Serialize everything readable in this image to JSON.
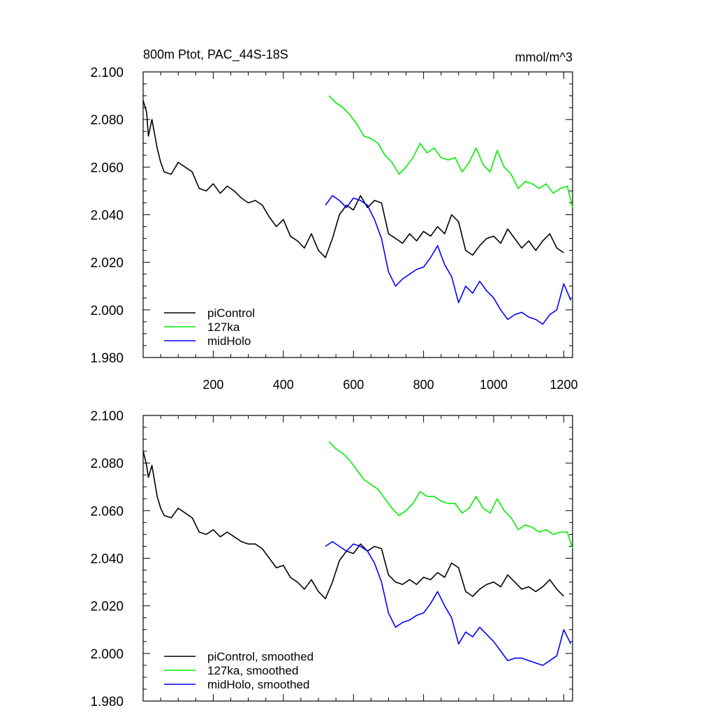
{
  "figure": {
    "title_left": "800m Ptot, PAC_44S-18S",
    "title_right": "mmol/m^3"
  },
  "chart_data": [
    {
      "type": "line",
      "title": "800m Ptot, PAC_44S-18S",
      "units": "mmol/m^3",
      "xlim": [
        0,
        1225
      ],
      "ylim": [
        1.98,
        2.1
      ],
      "xticks": [
        200,
        400,
        600,
        800,
        1000,
        1200
      ],
      "xtick_labels": [
        "200",
        "400",
        "600",
        "800",
        "1000",
        "1200"
      ],
      "yticks": [
        1.98,
        2.0,
        2.02,
        2.04,
        2.06,
        2.08,
        2.1
      ],
      "ytick_labels": [
        "1.980",
        "2.000",
        "2.020",
        "2.040",
        "2.060",
        "2.080",
        "2.100"
      ],
      "grid": false,
      "legend_position": "bottom-left",
      "series": [
        {
          "name": "piControl",
          "color": "#000000",
          "x": [
            0,
            10,
            15,
            25,
            40,
            50,
            60,
            80,
            100,
            120,
            140,
            160,
            180,
            200,
            220,
            240,
            260,
            280,
            300,
            320,
            340,
            360,
            380,
            400,
            420,
            440,
            460,
            480,
            500,
            520,
            540,
            560,
            580,
            600,
            620,
            640,
            660,
            680,
            700,
            720,
            740,
            760,
            780,
            800,
            820,
            840,
            860,
            880,
            900,
            920,
            940,
            960,
            980,
            1000,
            1020,
            1040,
            1060,
            1080,
            1100,
            1120,
            1140,
            1160,
            1180,
            1200
          ],
          "y": [
            2.088,
            2.083,
            2.073,
            2.08,
            2.068,
            2.062,
            2.058,
            2.057,
            2.062,
            2.06,
            2.058,
            2.051,
            2.05,
            2.053,
            2.049,
            2.052,
            2.05,
            2.047,
            2.045,
            2.046,
            2.044,
            2.039,
            2.035,
            2.038,
            2.031,
            2.029,
            2.026,
            2.032,
            2.025,
            2.022,
            2.03,
            2.04,
            2.044,
            2.042,
            2.048,
            2.043,
            2.046,
            2.045,
            2.032,
            2.03,
            2.028,
            2.032,
            2.029,
            2.033,
            2.031,
            2.035,
            2.032,
            2.04,
            2.037,
            2.025,
            2.023,
            2.027,
            2.03,
            2.031,
            2.028,
            2.034,
            2.03,
            2.026,
            2.029,
            2.025,
            2.029,
            2.032,
            2.026,
            2.024
          ]
        },
        {
          "name": "127ka",
          "color": "#00ee00",
          "x": [
            530,
            550,
            570,
            590,
            610,
            630,
            650,
            670,
            690,
            710,
            730,
            750,
            770,
            790,
            810,
            830,
            850,
            870,
            890,
            910,
            930,
            950,
            970,
            990,
            1010,
            1030,
            1050,
            1070,
            1090,
            1110,
            1130,
            1150,
            1170,
            1190,
            1210,
            1225
          ],
          "y": [
            2.09,
            2.087,
            2.085,
            2.082,
            2.078,
            2.073,
            2.072,
            2.07,
            2.065,
            2.062,
            2.057,
            2.06,
            2.064,
            2.07,
            2.066,
            2.068,
            2.064,
            2.063,
            2.064,
            2.058,
            2.062,
            2.068,
            2.061,
            2.058,
            2.067,
            2.06,
            2.057,
            2.051,
            2.054,
            2.053,
            2.051,
            2.053,
            2.049,
            2.051,
            2.052,
            2.043
          ]
        },
        {
          "name": "midHolo",
          "color": "#0000ff",
          "x": [
            520,
            540,
            560,
            580,
            600,
            620,
            640,
            660,
            680,
            700,
            720,
            740,
            760,
            780,
            800,
            820,
            840,
            860,
            880,
            900,
            920,
            940,
            960,
            980,
            1000,
            1020,
            1040,
            1060,
            1080,
            1100,
            1120,
            1140,
            1160,
            1180,
            1200,
            1220
          ],
          "y": [
            2.044,
            2.048,
            2.046,
            2.043,
            2.047,
            2.046,
            2.044,
            2.038,
            2.03,
            2.016,
            2.01,
            2.013,
            2.015,
            2.017,
            2.018,
            2.022,
            2.027,
            2.019,
            2.014,
            2.003,
            2.01,
            2.007,
            2.012,
            2.008,
            2.005,
            2.0,
            1.996,
            1.998,
            1.999,
            1.997,
            1.996,
            1.994,
            1.998,
            2.0,
            2.011,
            2.004
          ]
        }
      ]
    },
    {
      "type": "line",
      "xlim": [
        0,
        1225
      ],
      "ylim": [
        1.98,
        2.1
      ],
      "xticks": [
        200,
        400,
        600,
        800,
        1000,
        1200
      ],
      "yticks": [
        1.98,
        2.0,
        2.02,
        2.04,
        2.06,
        2.08,
        2.1
      ],
      "ytick_labels": [
        "1.980",
        "2.000",
        "2.020",
        "2.040",
        "2.060",
        "2.080",
        "2.100"
      ],
      "grid": false,
      "legend_position": "bottom-left",
      "series": [
        {
          "name": "piControl, smoothed",
          "color": "#000000",
          "x": [
            0,
            10,
            15,
            25,
            40,
            50,
            60,
            80,
            100,
            120,
            140,
            160,
            180,
            200,
            220,
            240,
            260,
            280,
            300,
            320,
            340,
            360,
            380,
            400,
            420,
            440,
            460,
            480,
            500,
            520,
            540,
            560,
            580,
            600,
            620,
            640,
            660,
            680,
            700,
            720,
            740,
            760,
            780,
            800,
            820,
            840,
            860,
            880,
            900,
            920,
            940,
            960,
            980,
            1000,
            1020,
            1040,
            1060,
            1080,
            1100,
            1120,
            1140,
            1160,
            1180,
            1200
          ],
          "y": [
            2.085,
            2.079,
            2.074,
            2.079,
            2.066,
            2.061,
            2.058,
            2.057,
            2.061,
            2.059,
            2.057,
            2.051,
            2.05,
            2.052,
            2.049,
            2.051,
            2.049,
            2.047,
            2.046,
            2.046,
            2.044,
            2.04,
            2.036,
            2.037,
            2.032,
            2.03,
            2.027,
            2.031,
            2.026,
            2.023,
            2.03,
            2.039,
            2.043,
            2.042,
            2.046,
            2.043,
            2.045,
            2.044,
            2.033,
            2.03,
            2.029,
            2.031,
            2.029,
            2.032,
            2.031,
            2.034,
            2.032,
            2.038,
            2.036,
            2.026,
            2.024,
            2.027,
            2.029,
            2.03,
            2.028,
            2.033,
            2.03,
            2.027,
            2.028,
            2.026,
            2.028,
            2.031,
            2.027,
            2.024
          ]
        },
        {
          "name": "127ka, smoothed",
          "color": "#00ee00",
          "x": [
            530,
            550,
            570,
            590,
            610,
            630,
            650,
            670,
            690,
            710,
            730,
            750,
            770,
            790,
            810,
            830,
            850,
            870,
            890,
            910,
            930,
            950,
            970,
            990,
            1010,
            1030,
            1050,
            1070,
            1090,
            1110,
            1130,
            1150,
            1170,
            1190,
            1210,
            1225
          ],
          "y": [
            2.089,
            2.086,
            2.084,
            2.081,
            2.077,
            2.073,
            2.071,
            2.069,
            2.065,
            2.061,
            2.058,
            2.06,
            2.063,
            2.068,
            2.066,
            2.066,
            2.064,
            2.063,
            2.063,
            2.059,
            2.061,
            2.066,
            2.061,
            2.059,
            2.065,
            2.06,
            2.057,
            2.052,
            2.054,
            2.053,
            2.051,
            2.052,
            2.05,
            2.051,
            2.051,
            2.044
          ]
        },
        {
          "name": "midHolo, smoothed",
          "color": "#0000ff",
          "x": [
            520,
            540,
            560,
            580,
            600,
            620,
            640,
            660,
            680,
            700,
            720,
            740,
            760,
            780,
            800,
            820,
            840,
            860,
            880,
            900,
            920,
            940,
            960,
            980,
            1000,
            1020,
            1040,
            1060,
            1080,
            1100,
            1120,
            1140,
            1160,
            1180,
            1200,
            1220
          ],
          "y": [
            2.045,
            2.047,
            2.045,
            2.043,
            2.046,
            2.045,
            2.043,
            2.038,
            2.03,
            2.017,
            2.011,
            2.013,
            2.014,
            2.016,
            2.017,
            2.021,
            2.026,
            2.02,
            2.015,
            2.004,
            2.009,
            2.007,
            2.011,
            2.008,
            2.005,
            2.001,
            1.997,
            1.998,
            1.998,
            1.997,
            1.996,
            1.995,
            1.997,
            1.999,
            2.01,
            2.004
          ]
        }
      ]
    }
  ]
}
